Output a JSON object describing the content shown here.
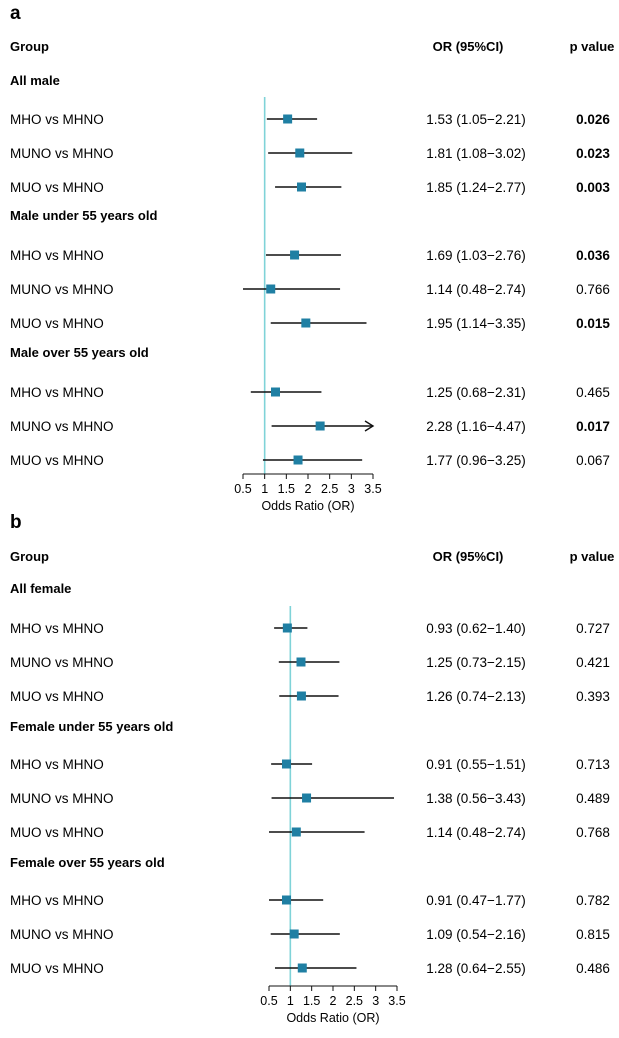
{
  "chart_data": [
    {
      "type": "forest",
      "panel_label": "a",
      "header": {
        "group": "Group",
        "or": "OR (95%CI)",
        "p": "p value"
      },
      "xlabel": "Odds Ratio (OR)",
      "xticks": [
        "0.5",
        "1",
        "1.5",
        "2",
        "2.5",
        "3",
        "3.5"
      ],
      "xlim": [
        0.5,
        3.5
      ],
      "reference_line": 1,
      "point_color": "#1f7fa3",
      "reference_color": "#7fd3d8",
      "groups": [
        {
          "title": "All male",
          "rows": [
            {
              "label": "MHO vs MHNO",
              "or": 1.53,
              "lo": 1.05,
              "hi": 2.21,
              "or_text": "1.53 (1.05−2.21)",
              "p": "0.026",
              "sig": true
            },
            {
              "label": "MUNO vs MHNO",
              "or": 1.81,
              "lo": 1.08,
              "hi": 3.02,
              "or_text": "1.81 (1.08−3.02)",
              "p": "0.023",
              "sig": true
            },
            {
              "label": "MUO vs MHNO",
              "or": 1.85,
              "lo": 1.24,
              "hi": 2.77,
              "or_text": "1.85 (1.24−2.77)",
              "p": "0.003",
              "sig": true
            }
          ]
        },
        {
          "title": "Male under 55 years old",
          "rows": [
            {
              "label": "MHO vs MHNO",
              "or": 1.69,
              "lo": 1.03,
              "hi": 2.76,
              "or_text": "1.69 (1.03−2.76)",
              "p": "0.036",
              "sig": true
            },
            {
              "label": "MUNO vs MHNO",
              "or": 1.14,
              "lo": 0.48,
              "hi": 2.74,
              "or_text": "1.14 (0.48−2.74)",
              "p": "0.766",
              "sig": false
            },
            {
              "label": "MUO vs MHNO",
              "or": 1.95,
              "lo": 1.14,
              "hi": 3.35,
              "or_text": "1.95 (1.14−3.35)",
              "p": "0.015",
              "sig": true
            }
          ]
        },
        {
          "title": "Male over 55 years old",
          "rows": [
            {
              "label": "MHO vs MHNO",
              "or": 1.25,
              "lo": 0.68,
              "hi": 2.31,
              "or_text": "1.25 (0.68−2.31)",
              "p": "0.465",
              "sig": false
            },
            {
              "label": "MUNO vs MHNO",
              "or": 2.28,
              "lo": 1.16,
              "hi": 4.47,
              "or_text": "2.28 (1.16−4.47)",
              "p": "0.017",
              "sig": true
            },
            {
              "label": "MUO vs MHNO",
              "or": 1.77,
              "lo": 0.96,
              "hi": 3.25,
              "or_text": "1.77 (0.96−3.25)",
              "p": "0.067",
              "sig": false
            }
          ]
        }
      ]
    },
    {
      "type": "forest",
      "panel_label": "b",
      "header": {
        "group": "Group",
        "or": "OR (95%CI)",
        "p": "p value"
      },
      "xlabel": "Odds Ratio (OR)",
      "xticks": [
        "0.5",
        "1",
        "1.5",
        "2",
        "2.5",
        "3",
        "3.5"
      ],
      "xlim": [
        0.5,
        3.5
      ],
      "reference_line": 1,
      "point_color": "#1f7fa3",
      "reference_color": "#7fd3d8",
      "groups": [
        {
          "title": "All female",
          "rows": [
            {
              "label": "MHO vs MHNO",
              "or": 0.93,
              "lo": 0.62,
              "hi": 1.4,
              "or_text": "0.93 (0.62−1.40)",
              "p": "0.727",
              "sig": false
            },
            {
              "label": "MUNO vs MHNO",
              "or": 1.25,
              "lo": 0.73,
              "hi": 2.15,
              "or_text": "1.25 (0.73−2.15)",
              "p": "0.421",
              "sig": false
            },
            {
              "label": "MUO vs MHNO",
              "or": 1.26,
              "lo": 0.74,
              "hi": 2.13,
              "or_text": "1.26 (0.74−2.13)",
              "p": "0.393",
              "sig": false
            }
          ]
        },
        {
          "title": "Female under 55 years old",
          "rows": [
            {
              "label": "MHO vs MHNO",
              "or": 0.91,
              "lo": 0.55,
              "hi": 1.51,
              "or_text": "0.91 (0.55−1.51)",
              "p": "0.713",
              "sig": false
            },
            {
              "label": "MUNO vs MHNO",
              "or": 1.38,
              "lo": 0.56,
              "hi": 3.43,
              "or_text": "1.38 (0.56−3.43)",
              "p": "0.489",
              "sig": false
            },
            {
              "label": "MUO vs MHNO",
              "or": 1.14,
              "lo": 0.48,
              "hi": 2.74,
              "or_text": "1.14 (0.48−2.74)",
              "p": "0.768",
              "sig": false
            }
          ]
        },
        {
          "title": "Female over 55 years old",
          "rows": [
            {
              "label": "MHO vs MHNO",
              "or": 0.91,
              "lo": 0.47,
              "hi": 1.77,
              "or_text": "0.91 (0.47−1.77)",
              "p": "0.782",
              "sig": false
            },
            {
              "label": "MUNO vs MHNO",
              "or": 1.09,
              "lo": 0.54,
              "hi": 2.16,
              "or_text": "1.09 (0.54−2.16)",
              "p": "0.815",
              "sig": false
            },
            {
              "label": "MUO vs MHNO",
              "or": 1.28,
              "lo": 0.64,
              "hi": 2.55,
              "or_text": "1.28 (0.64−2.55)",
              "p": "0.486",
              "sig": false
            }
          ]
        }
      ]
    }
  ]
}
